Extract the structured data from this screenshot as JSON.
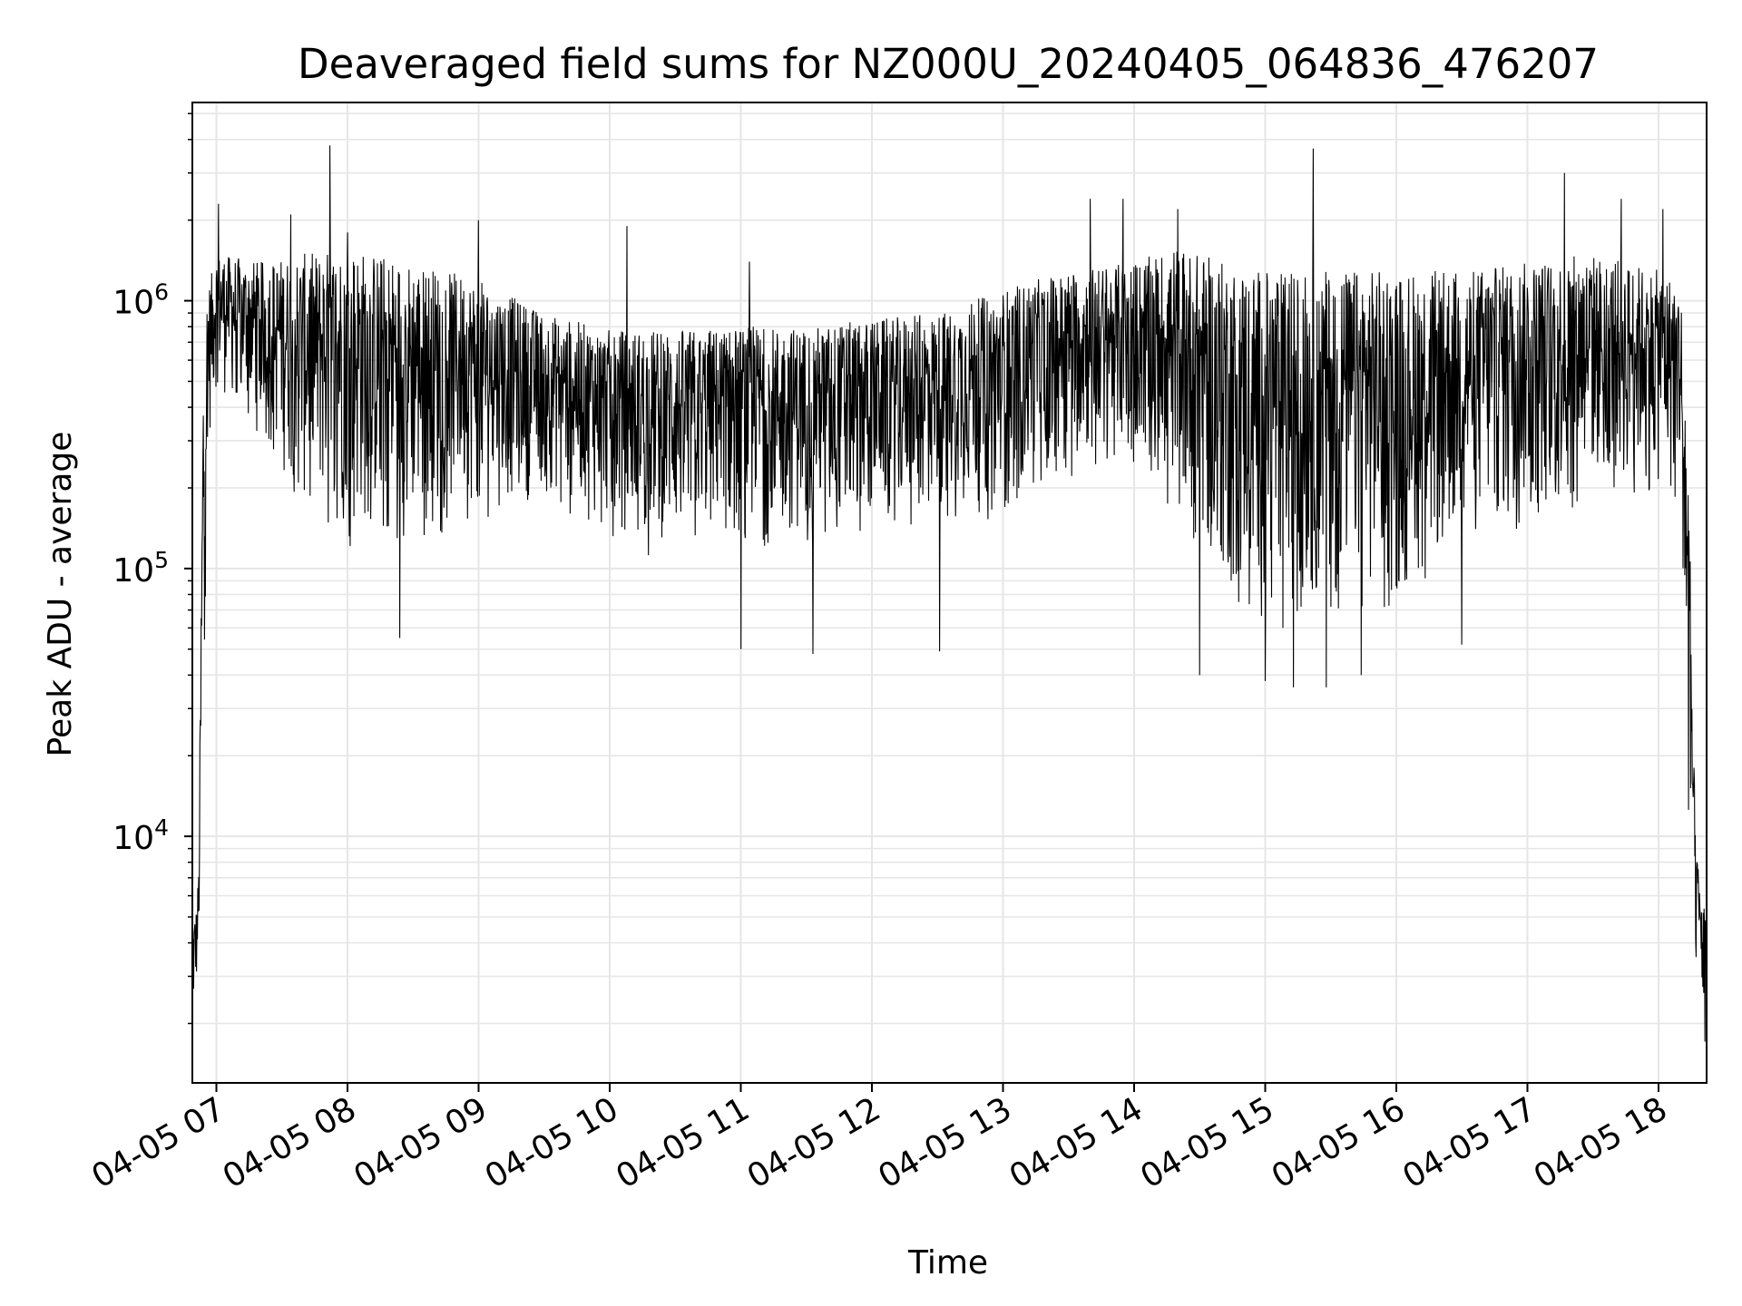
{
  "chart_data": {
    "type": "line",
    "title": "Deaveraged field sums for NZ000U_20240405_064836_476207",
    "xlabel": "Time",
    "ylabel": "Peak ADU - average",
    "yscale": "log",
    "ylim": [
      1200,
      5500000
    ],
    "xlim": [
      "2024-04-05 06:49",
      "2024-04-05 18:22"
    ],
    "grid": true,
    "line_color": "#000000",
    "grid_color": "#e6e6e6",
    "x_ticks": [
      {
        "value": "2024-04-05 07:00",
        "label": "04-05 07"
      },
      {
        "value": "2024-04-05 08:00",
        "label": "04-05 08"
      },
      {
        "value": "2024-04-05 09:00",
        "label": "04-05 09"
      },
      {
        "value": "2024-04-05 10:00",
        "label": "04-05 10"
      },
      {
        "value": "2024-04-05 11:00",
        "label": "04-05 11"
      },
      {
        "value": "2024-04-05 12:00",
        "label": "04-05 12"
      },
      {
        "value": "2024-04-05 13:00",
        "label": "04-05 13"
      },
      {
        "value": "2024-04-05 14:00",
        "label": "04-05 14"
      },
      {
        "value": "2024-04-05 15:00",
        "label": "04-05 15"
      },
      {
        "value": "2024-04-05 16:00",
        "label": "04-05 16"
      },
      {
        "value": "2024-04-05 17:00",
        "label": "04-05 17"
      },
      {
        "value": "2024-04-05 18:00",
        "label": "04-05 18"
      }
    ],
    "y_ticks": [
      {
        "value": 10000,
        "base": "10",
        "exp": "4"
      },
      {
        "value": 100000,
        "base": "10",
        "exp": "5"
      },
      {
        "value": 1000000,
        "base": "10",
        "exp": "6"
      }
    ],
    "envelope": {
      "x": [
        "2024-04-05 06:49",
        "2024-04-05 06:50",
        "2024-04-05 06:51",
        "2024-04-05 06:52",
        "2024-04-05 06:54",
        "2024-04-05 06:56",
        "2024-04-05 07:00",
        "2024-04-05 07:20",
        "2024-04-05 07:40",
        "2024-04-05 08:00",
        "2024-04-05 08:30",
        "2024-04-05 09:00",
        "2024-04-05 09:30",
        "2024-04-05 10:00",
        "2024-04-05 10:30",
        "2024-04-05 11:00",
        "2024-04-05 11:30",
        "2024-04-05 12:00",
        "2024-04-05 12:30",
        "2024-04-05 13:00",
        "2024-04-05 13:30",
        "2024-04-05 14:00",
        "2024-04-05 14:20",
        "2024-04-05 14:40",
        "2024-04-05 15:00",
        "2024-04-05 15:20",
        "2024-04-05 15:40",
        "2024-04-05 16:00",
        "2024-04-05 16:30",
        "2024-04-05 17:00",
        "2024-04-05 17:30",
        "2024-04-05 18:00",
        "2024-04-05 18:10",
        "2024-04-05 18:12",
        "2024-04-05 18:14",
        "2024-04-05 18:16",
        "2024-04-05 18:18",
        "2024-04-05 18:20",
        "2024-04-05 18:22"
      ],
      "hi": [
        5000,
        5200,
        5500,
        8000,
        700000,
        1100000,
        1500000,
        1400000,
        1500000,
        1600000,
        1400000,
        1200000,
        900000,
        780000,
        780000,
        800000,
        800000,
        850000,
        900000,
        1100000,
        1300000,
        1400000,
        1600000,
        1400000,
        1300000,
        1300000,
        1300000,
        1300000,
        1300000,
        1400000,
        1500000,
        1300000,
        1200000,
        600000,
        200000,
        20000,
        8000,
        6000,
        5000
      ],
      "lo": [
        1600,
        2000,
        2500,
        3500,
        20000,
        250000,
        450000,
        300000,
        150000,
        120000,
        120000,
        150000,
        180000,
        130000,
        100000,
        120000,
        120000,
        130000,
        150000,
        150000,
        220000,
        250000,
        150000,
        70000,
        60000,
        60000,
        60000,
        70000,
        100000,
        140000,
        180000,
        180000,
        150000,
        30000,
        8000,
        4000,
        2500,
        2000,
        1500
      ]
    },
    "spikes": [
      {
        "x": "2024-04-05 07:01",
        "y": 2300000
      },
      {
        "x": "2024-04-05 07:34",
        "y": 2100000
      },
      {
        "x": "2024-04-05 07:52",
        "y": 3800000
      },
      {
        "x": "2024-04-05 08:00",
        "y": 1800000
      },
      {
        "x": "2024-04-05 08:24",
        "y": 55000
      },
      {
        "x": "2024-04-05 09:00",
        "y": 2000000
      },
      {
        "x": "2024-04-05 10:08",
        "y": 1900000
      },
      {
        "x": "2024-04-05 11:04",
        "y": 1400000
      },
      {
        "x": "2024-04-05 11:00",
        "y": 50000
      },
      {
        "x": "2024-04-05 11:33",
        "y": 48000
      },
      {
        "x": "2024-04-05 12:31",
        "y": 49000
      },
      {
        "x": "2024-04-05 13:40",
        "y": 2400000
      },
      {
        "x": "2024-04-05 13:55",
        "y": 2400000
      },
      {
        "x": "2024-04-05 14:20",
        "y": 2200000
      },
      {
        "x": "2024-04-05 14:30",
        "y": 40000
      },
      {
        "x": "2024-04-05 15:00",
        "y": 38000
      },
      {
        "x": "2024-04-05 15:13",
        "y": 36000
      },
      {
        "x": "2024-04-05 15:22",
        "y": 3700000
      },
      {
        "x": "2024-04-05 15:28",
        "y": 36000
      },
      {
        "x": "2024-04-05 15:44",
        "y": 40000
      },
      {
        "x": "2024-04-05 16:30",
        "y": 52000
      },
      {
        "x": "2024-04-05 17:17",
        "y": 3000000
      },
      {
        "x": "2024-04-05 17:43",
        "y": 2400000
      },
      {
        "x": "2024-04-05 18:02",
        "y": 2200000
      }
    ]
  }
}
